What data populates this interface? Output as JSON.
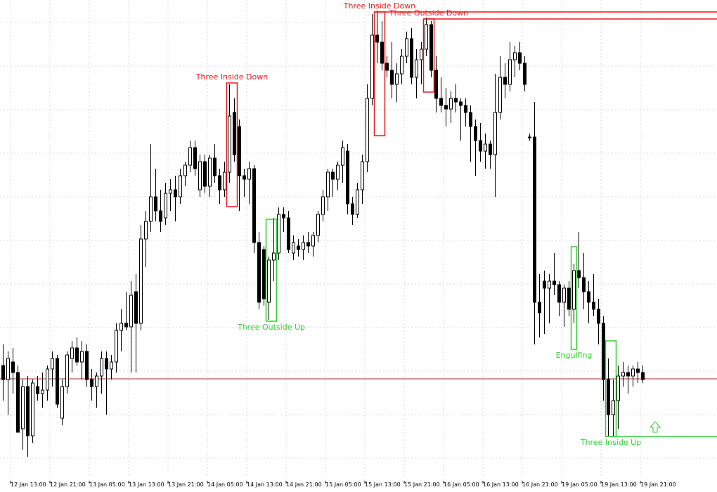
{
  "chart_data": {
    "type": "candlestick",
    "bull_color": "#ffffff",
    "bear_color": "#000000",
    "outline_color": "#000000",
    "ylim": [
      0,
      700
    ],
    "grid": true,
    "categories": [
      null,
      "12 Jan 13:00",
      null,
      null,
      null,
      null,
      null,
      null,
      null,
      "12 Jan 21:00",
      null,
      null,
      null,
      null,
      null,
      null,
      null,
      "13 Jan 05:00",
      null,
      null,
      null,
      null,
      null,
      null,
      null,
      "13 Jan 13:00",
      null,
      null,
      null,
      null,
      null,
      null,
      null,
      "13 Jan 21:00",
      null,
      null,
      null,
      null,
      null,
      null,
      null,
      "14 Jan 05:00",
      null,
      null,
      null,
      null,
      null,
      null,
      null,
      "14 Jan 13:00",
      null,
      null,
      null,
      null,
      null,
      null,
      null,
      "14 Jan 21:00",
      null,
      null,
      null,
      null,
      null,
      null,
      null,
      "15 Jan 05:00",
      null,
      null,
      null,
      null,
      null,
      null,
      null,
      "15 Jan 13:00",
      null,
      null,
      null,
      null,
      null,
      null,
      null,
      "15 Jan 21:00",
      null,
      null,
      null,
      null,
      null,
      null,
      null,
      "16 Jan 05:00",
      null,
      null,
      null,
      null,
      null,
      null,
      null,
      "16 Jan 13:00",
      null,
      null,
      null,
      null,
      null,
      null,
      null,
      "16 Jan 21:00",
      null,
      null,
      null,
      null,
      null,
      null,
      null,
      "19 Jan 05:00",
      null,
      null,
      null,
      null,
      null,
      null,
      null,
      "19 Jan 13:00",
      null,
      null,
      null,
      null,
      null,
      null,
      null,
      "19 Jan 21:00",
      null
    ],
    "ohlc": [
      [
        180,
        210,
        130,
        160
      ],
      [
        160,
        200,
        110,
        190
      ],
      [
        185,
        205,
        140,
        170
      ],
      [
        170,
        180,
        90,
        85
      ],
      [
        90,
        160,
        60,
        150
      ],
      [
        150,
        165,
        50,
        80
      ],
      [
        80,
        160,
        70,
        155
      ],
      [
        150,
        165,
        130,
        140
      ],
      [
        140,
        170,
        120,
        145
      ],
      [
        145,
        180,
        130,
        175
      ],
      [
        175,
        200,
        150,
        190
      ],
      [
        190,
        195,
        120,
        125
      ],
      [
        105,
        160,
        95,
        150
      ],
      [
        150,
        200,
        140,
        195
      ],
      [
        190,
        215,
        170,
        205
      ],
      [
        205,
        220,
        180,
        185
      ],
      [
        185,
        215,
        160,
        200
      ],
      [
        200,
        210,
        150,
        160
      ],
      [
        160,
        175,
        130,
        150
      ],
      [
        150,
        170,
        120,
        165
      ],
      [
        165,
        200,
        140,
        190
      ],
      [
        190,
        200,
        110,
        175
      ],
      [
        175,
        195,
        160,
        185
      ],
      [
        185,
        240,
        170,
        230
      ],
      [
        230,
        260,
        200,
        240
      ],
      [
        240,
        285,
        230,
        235
      ],
      [
        235,
        300,
        170,
        280
      ],
      [
        285,
        310,
        170,
        240
      ],
      [
        240,
        380,
        230,
        360
      ],
      [
        360,
        400,
        320,
        385
      ],
      [
        385,
        495,
        370,
        420
      ],
      [
        420,
        460,
        385,
        400
      ],
      [
        400,
        430,
        370,
        385
      ],
      [
        390,
        440,
        380,
        425
      ],
      [
        425,
        445,
        400,
        430
      ],
      [
        430,
        450,
        385,
        420
      ],
      [
        420,
        460,
        410,
        450
      ],
      [
        450,
        470,
        435,
        465
      ],
      [
        465,
        500,
        455,
        490
      ],
      [
        490,
        500,
        450,
        460
      ],
      [
        430,
        480,
        420,
        470
      ],
      [
        470,
        480,
        425,
        435
      ],
      [
        435,
        480,
        420,
        475
      ],
      [
        475,
        495,
        440,
        450
      ],
      [
        450,
        460,
        410,
        430
      ],
      [
        430,
        470,
        420,
        455
      ],
      [
        455,
        580,
        440,
        535
      ],
      [
        540,
        560,
        470,
        480
      ],
      [
        520,
        530,
        400,
        450
      ],
      [
        450,
        460,
        420,
        445
      ],
      [
        445,
        470,
        410,
        460
      ],
      [
        460,
        465,
        340,
        355
      ],
      [
        355,
        370,
        260,
        270
      ],
      [
        345,
        350,
        265,
        275
      ],
      [
        270,
        335,
        245,
        330
      ],
      [
        330,
        390,
        300,
        340
      ],
      [
        340,
        405,
        330,
        395
      ],
      [
        395,
        405,
        370,
        390
      ],
      [
        390,
        400,
        340,
        345
      ],
      [
        340,
        365,
        330,
        355
      ],
      [
        350,
        360,
        335,
        345
      ],
      [
        345,
        365,
        330,
        355
      ],
      [
        355,
        370,
        340,
        350
      ],
      [
        350,
        370,
        335,
        365
      ],
      [
        365,
        400,
        355,
        395
      ],
      [
        395,
        430,
        385,
        420
      ],
      [
        420,
        460,
        400,
        455
      ],
      [
        455,
        460,
        420,
        445
      ],
      [
        445,
        470,
        430,
        465
      ],
      [
        465,
        500,
        440,
        490
      ],
      [
        485,
        495,
        395,
        410
      ],
      [
        410,
        420,
        380,
        395
      ],
      [
        395,
        440,
        390,
        430
      ],
      [
        430,
        480,
        410,
        470
      ],
      [
        470,
        580,
        455,
        560
      ],
      [
        560,
        680,
        550,
        650
      ],
      [
        650,
        685,
        610,
        640
      ],
      [
        640,
        670,
        600,
        610
      ],
      [
        610,
        620,
        590,
        600
      ],
      [
        600,
        640,
        560,
        580
      ],
      [
        580,
        610,
        555,
        595
      ],
      [
        595,
        630,
        580,
        620
      ],
      [
        620,
        655,
        610,
        645
      ],
      [
        645,
        660,
        580,
        590
      ],
      [
        590,
        630,
        560,
        615
      ],
      [
        615,
        640,
        580,
        630
      ],
      [
        630,
        675,
        620,
        665
      ],
      [
        665,
        670,
        590,
        600
      ],
      [
        600,
        620,
        540,
        560
      ],
      [
        560,
        590,
        540,
        550
      ],
      [
        550,
        575,
        520,
        545
      ],
      [
        545,
        570,
        525,
        560
      ],
      [
        560,
        580,
        540,
        555
      ],
      [
        555,
        560,
        500,
        550
      ],
      [
        550,
        560,
        520,
        540
      ],
      [
        540,
        550,
        470,
        520
      ],
      [
        520,
        530,
        450,
        500
      ],
      [
        500,
        525,
        470,
        485
      ],
      [
        485,
        510,
        460,
        495
      ],
      [
        495,
        500,
        460,
        480
      ],
      [
        480,
        595,
        420,
        540
      ],
      [
        540,
        620,
        530,
        590
      ],
      [
        590,
        610,
        560,
        580
      ],
      [
        580,
        640,
        570,
        615
      ],
      [
        615,
        635,
        590,
        625
      ],
      [
        625,
        640,
        600,
        610
      ],
      [
        610,
        620,
        570,
        580
      ],
      [
        505,
        510,
        500,
        505
      ],
      [
        505,
        555,
        210,
        270
      ],
      [
        270,
        310,
        220,
        255
      ],
      [
        300,
        315,
        225,
        290
      ],
      [
        290,
        310,
        240,
        300
      ],
      [
        300,
        340,
        280,
        295
      ],
      [
        295,
        300,
        250,
        270
      ],
      [
        270,
        295,
        235,
        290
      ],
      [
        290,
        300,
        250,
        260
      ],
      [
        260,
        325,
        240,
        315
      ],
      [
        315,
        370,
        290,
        305
      ],
      [
        305,
        340,
        260,
        285
      ],
      [
        285,
        300,
        240,
        270
      ],
      [
        270,
        310,
        250,
        260
      ],
      [
        260,
        275,
        210,
        240
      ],
      [
        240,
        250,
        130,
        160
      ],
      [
        160,
        190,
        80,
        110
      ],
      [
        110,
        160,
        80,
        130
      ],
      [
        130,
        180,
        90,
        165
      ],
      [
        165,
        185,
        150,
        170
      ],
      [
        170,
        180,
        140,
        165
      ],
      [
        165,
        180,
        150,
        175
      ],
      [
        175,
        185,
        155,
        170
      ],
      [
        170,
        180,
        155,
        160
      ]
    ],
    "price_line": 161,
    "price_line_color": "#a52a2a",
    "patterns": [
      {
        "label": "Three Inside Down",
        "color": "#e8191e",
        "start": 46,
        "end": 47,
        "high": 582,
        "low": 406
      },
      {
        "label": "Three Outside Up",
        "color": "#32cd32",
        "start": 54,
        "end": 55,
        "high": 388,
        "low": 243
      },
      {
        "label": "Three Inside Down",
        "color": "#e8191e",
        "start": 76,
        "end": 77,
        "high": 683,
        "low": 507,
        "extend": "high"
      },
      {
        "label": "Three Outside Down",
        "color": "#e8191e",
        "start": 86,
        "end": 87,
        "high": 673,
        "low": 569,
        "extend": "high"
      },
      {
        "label": "Engulfing",
        "color": "#32cd32",
        "start": 116,
        "end": 116,
        "high": 349,
        "low": 203
      },
      {
        "label": "Three Inside Up",
        "color": "#32cd32",
        "start": 123,
        "end": 124,
        "high": 215,
        "low": 79,
        "extend": "low"
      }
    ]
  }
}
